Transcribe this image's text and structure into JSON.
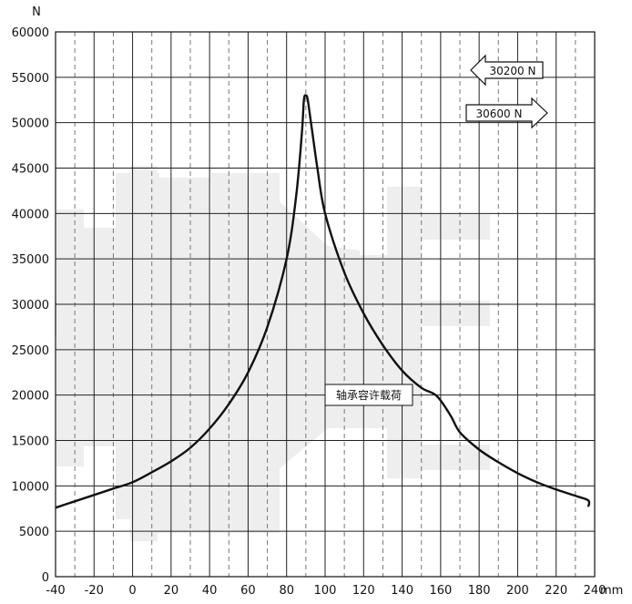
{
  "chart_data": {
    "type": "line",
    "ylabel": "N",
    "xunit": "mm",
    "xlim": [
      -40,
      240
    ],
    "ylim": [
      0,
      60000
    ],
    "xticks": [
      -40,
      -20,
      0,
      20,
      40,
      60,
      80,
      100,
      120,
      140,
      160,
      180,
      200,
      220,
      240
    ],
    "yticks": [
      0,
      5000,
      10000,
      15000,
      20000,
      25000,
      30000,
      35000,
      40000,
      45000,
      50000,
      55000,
      60000
    ],
    "xtick_labels": [
      "-40",
      "-20",
      "0",
      "20",
      "40",
      "60",
      "80",
      "100",
      "120",
      "140",
      "160",
      "180",
      "200",
      "220",
      "240"
    ],
    "ytick_labels": [
      "0",
      "5000",
      "10000",
      "15000",
      "20000",
      "25000",
      "30000",
      "35000",
      "40000",
      "45000",
      "50000",
      "55000",
      "60000"
    ],
    "grid": {
      "major": "solid vertical lines at labelled x ticks, solid horizontal lines at y ticks",
      "minor": "dashed vertical lines at odd multiples of 10"
    },
    "series": [
      {
        "name": "轴承容许载荷",
        "color": "#111111",
        "points": [
          [
            -40,
            7600
          ],
          [
            -30,
            8300
          ],
          [
            -20,
            9000
          ],
          [
            -10,
            9700
          ],
          [
            0,
            10400
          ],
          [
            10,
            11500
          ],
          [
            20,
            12700
          ],
          [
            30,
            14200
          ],
          [
            40,
            16300
          ],
          [
            50,
            19000
          ],
          [
            60,
            22500
          ],
          [
            70,
            27500
          ],
          [
            80,
            35000
          ],
          [
            85,
            42000
          ],
          [
            88,
            49000
          ],
          [
            89,
            52500
          ],
          [
            90,
            53000
          ],
          [
            91,
            52500
          ],
          [
            93,
            49500
          ],
          [
            96,
            45000
          ],
          [
            100,
            40000
          ],
          [
            110,
            33500
          ],
          [
            120,
            29000
          ],
          [
            130,
            25500
          ],
          [
            140,
            22700
          ],
          [
            150,
            20800
          ],
          [
            158,
            19900
          ],
          [
            165,
            17800
          ],
          [
            170,
            15900
          ],
          [
            180,
            14000
          ],
          [
            190,
            12600
          ],
          [
            200,
            11400
          ],
          [
            210,
            10400
          ],
          [
            220,
            9600
          ],
          [
            230,
            8900
          ],
          [
            240,
            8400
          ],
          [
            245,
            7700
          ]
        ]
      }
    ],
    "annotations": {
      "curve_label": "轴承容许载荷",
      "arrow_left_label": "30200 N",
      "arrow_right_label": "30600 N"
    }
  }
}
